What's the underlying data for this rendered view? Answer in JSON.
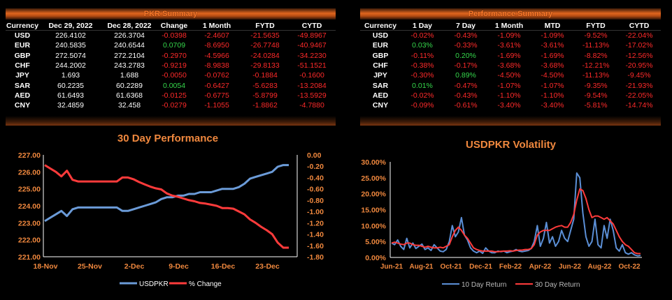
{
  "pkr_summary": {
    "title": "PKR Summary",
    "headers": [
      "Currency",
      "Dec 29, 2022",
      "Dec 28, 2022",
      "Change",
      "1 Month",
      "FYTD",
      "CYTD"
    ],
    "rows": [
      [
        "USD",
        "226.4102",
        "226.3704",
        "-0.0398",
        "-2.4607",
        "-21.5635",
        "-49.8967"
      ],
      [
        "EUR",
        "240.5835",
        "240.6544",
        "0.0709",
        "-8.6950",
        "-26.7748",
        "-40.9467"
      ],
      [
        "GBP",
        "272.5074",
        "272.2104",
        "-0.2970",
        "-4.5966",
        "-24.0284",
        "-34.2230"
      ],
      [
        "CHF",
        "244.2002",
        "243.2783",
        "-0.9219",
        "-8.9838",
        "-29.8133",
        "-51.1521"
      ],
      [
        "JPY",
        "1.693",
        "1.688",
        "-0.0050",
        "-0.0762",
        "-0.1884",
        "-0.1600"
      ],
      [
        "SAR",
        "60.2235",
        "60.2289",
        "0.0054",
        "-0.6427",
        "-5.6283",
        "-13.2084"
      ],
      [
        "AED",
        "61.6493",
        "61.6368",
        "-0.0125",
        "-0.6775",
        "-5.8799",
        "-13.5929"
      ],
      [
        "CNY",
        "32.4859",
        "32.458",
        "-0.0279",
        "-1.1055",
        "-1.8862",
        "-4.7880"
      ]
    ]
  },
  "performance_summary": {
    "title": "Performance Summary",
    "headers": [
      "Currency",
      "1 Day",
      "7 Day",
      "1 Month",
      "MTD",
      "FYTD",
      "CYTD"
    ],
    "rows": [
      [
        "USD",
        "-0.02%",
        "-0.43%",
        "-1.09%",
        "-1.09%",
        "-9.52%",
        "-22.04%"
      ],
      [
        "EUR",
        "0.03%",
        "-0.33%",
        "-3.61%",
        "-3.61%",
        "-11.13%",
        "-17.02%"
      ],
      [
        "GBP",
        "-0.11%",
        "0.20%",
        "-1.69%",
        "-1.69%",
        "-8.82%",
        "-12.56%"
      ],
      [
        "CHF",
        "-0.38%",
        "-0.17%",
        "-3.68%",
        "-3.68%",
        "-12.21%",
        "-20.95%"
      ],
      [
        "JPY",
        "-0.30%",
        "0.89%",
        "-4.50%",
        "-4.50%",
        "-11.13%",
        "-9.45%"
      ],
      [
        "SAR",
        "0.01%",
        "-0.47%",
        "-1.07%",
        "-1.07%",
        "-9.35%",
        "-21.93%"
      ],
      [
        "AED",
        "-0.02%",
        "-0.43%",
        "-1.10%",
        "-1.10%",
        "-9.54%",
        "-22.05%"
      ],
      [
        "CNY",
        "-0.09%",
        "-0.61%",
        "-3.40%",
        "-3.40%",
        "-5.81%",
        "-14.74%"
      ]
    ]
  },
  "colors": {
    "accent": "#f0883e",
    "negative": "#ff2a2a",
    "positive": "#35d64b",
    "usd_line": "#6b9bd8",
    "change_line": "#ff3b3b",
    "ten_day": "#5b8fd6",
    "thirty_day": "#ff3b3b"
  },
  "chart_data": [
    {
      "type": "line",
      "title": "30 Day Performance",
      "x_tick_labels": [
        "18-Nov",
        "25-Nov",
        "2-Dec",
        "9-Dec",
        "16-Dec",
        "23-Dec"
      ],
      "y_left_ticks": [
        "227.00",
        "226.00",
        "225.00",
        "224.00",
        "223.00",
        "222.00",
        "221.00"
      ],
      "y_right_ticks": [
        "0.00",
        "-0.20",
        "-0.40",
        "-0.60",
        "-0.80",
        "-1.00",
        "-1.20",
        "-1.40",
        "-1.60",
        "-1.80"
      ],
      "ylim_left": [
        221,
        227
      ],
      "ylim_right": [
        -1.8,
        0
      ],
      "series": [
        {
          "name": "USDPKR",
          "axis": "left",
          "values": [
            223.1,
            223.3,
            223.5,
            223.7,
            223.4,
            223.8,
            223.9,
            223.9,
            223.9,
            223.9,
            223.9,
            223.9,
            223.9,
            223.9,
            223.7,
            223.7,
            223.8,
            223.9,
            224.0,
            224.1,
            224.2,
            224.4,
            224.5,
            224.5,
            224.6,
            224.6,
            224.7,
            224.7,
            224.8,
            224.8,
            224.8,
            224.9,
            225.0,
            225.0,
            225.0,
            225.1,
            225.3,
            225.6,
            225.7,
            225.8,
            225.9,
            226.0,
            226.3,
            226.4,
            226.4
          ]
        },
        {
          "name": "% Change",
          "axis": "right",
          "values": [
            -0.18,
            -0.24,
            -0.3,
            -0.38,
            -0.28,
            -0.44,
            -0.47,
            -0.47,
            -0.47,
            -0.47,
            -0.47,
            -0.47,
            -0.47,
            -0.47,
            -0.4,
            -0.4,
            -0.43,
            -0.48,
            -0.52,
            -0.56,
            -0.59,
            -0.61,
            -0.68,
            -0.72,
            -0.74,
            -0.77,
            -0.8,
            -0.82,
            -0.85,
            -0.86,
            -0.88,
            -0.9,
            -0.94,
            -0.94,
            -0.95,
            -1.0,
            -1.05,
            -1.14,
            -1.2,
            -1.27,
            -1.33,
            -1.4,
            -1.55,
            -1.64,
            -1.64
          ]
        }
      ],
      "legend": [
        "USDPKR",
        "% Change"
      ],
      "legend_position": "bottom"
    },
    {
      "type": "line",
      "title": "USDPKR Volatility",
      "x_tick_labels": [
        "Jun-21",
        "Aug-21",
        "Oct-21",
        "Dec-21",
        "Feb-22",
        "Apr-22",
        "Jun-22",
        "Aug-22",
        "Oct-22"
      ],
      "y_ticks": [
        "30.00%",
        "25.00%",
        "20.00%",
        "15.00%",
        "10.00%",
        "5.00%",
        "0.00%"
      ],
      "ylim": [
        0,
        30
      ],
      "series": [
        {
          "name": "10 Day Return",
          "values": [
            4.5,
            4.0,
            5.5,
            3.5,
            2.5,
            6.0,
            3.0,
            4.5,
            2.8,
            3.5,
            4.2,
            2.5,
            3.0,
            2.2,
            4.0,
            3.0,
            2.0,
            1.8,
            2.5,
            5.0,
            10.0,
            6.5,
            8.0,
            12.5,
            7.0,
            5.5,
            3.0,
            2.0,
            1.5,
            2.0,
            1.3,
            3.0,
            2.0,
            1.5,
            1.5,
            2.0,
            1.8,
            2.0,
            1.5,
            1.8,
            2.0,
            2.5,
            2.0,
            1.8,
            2.0,
            2.2,
            2.8,
            5.0,
            10.0,
            3.5,
            6.0,
            11.0,
            4.5,
            6.5,
            3.5,
            5.0,
            8.5,
            6.0,
            5.0,
            8.5,
            12.0,
            26.5,
            25.0,
            14.0,
            6.5,
            3.5,
            5.0,
            12.0,
            4.0,
            3.0,
            10.0,
            6.0,
            12.0,
            8.5,
            3.0,
            2.0,
            4.0,
            1.5,
            1.0,
            1.5,
            0.8,
            0.5,
            0.6
          ]
        },
        {
          "name": "30 Day Return",
          "values": [
            4.5,
            4.8,
            4.5,
            4.2,
            4.0,
            4.5,
            4.5,
            4.0,
            3.8,
            3.8,
            3.5,
            3.2,
            3.5,
            3.2,
            3.0,
            3.0,
            3.2,
            3.0,
            3.5,
            4.0,
            6.5,
            8.5,
            9.5,
            8.5,
            7.0,
            6.0,
            4.5,
            3.0,
            2.5,
            2.2,
            2.0,
            2.0,
            2.0,
            2.0,
            1.8,
            1.8,
            1.9,
            2.0,
            2.0,
            2.1,
            2.0,
            2.2,
            2.3,
            2.3,
            2.5,
            2.5,
            2.8,
            4.0,
            7.0,
            8.0,
            8.5,
            8.5,
            8.5,
            9.0,
            9.5,
            9.8,
            10.0,
            9.5,
            9.5,
            11.0,
            13.5,
            18.0,
            21.5,
            21.0,
            18.5,
            15.0,
            12.5,
            13.0,
            13.0,
            12.5,
            12.0,
            12.5,
            11.5,
            10.5,
            8.5,
            6.5,
            5.0,
            4.0,
            3.5,
            2.5,
            1.5,
            1.2,
            1.2
          ]
        }
      ],
      "legend": [
        "10 Day Return",
        "30 Day Return"
      ],
      "legend_position": "bottom"
    }
  ]
}
